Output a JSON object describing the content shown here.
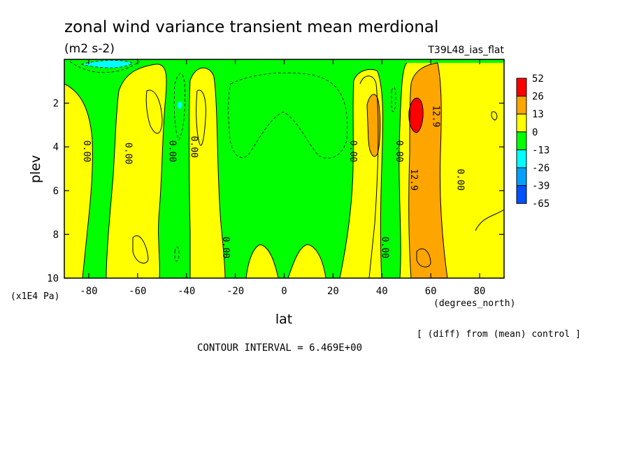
{
  "chart_data": {
    "type": "heatmap",
    "title": "zonal wind variance transient mean merdional",
    "subtitle": "(m2 s-2)",
    "run_label": "T39L48_ias_flat",
    "xlabel": "lat",
    "x_units": "(degrees_north)",
    "ylabel": "plev",
    "y_units": "(x1E4 Pa)",
    "xlim": [
      -90,
      90
    ],
    "ylim": [
      0,
      10
    ],
    "y_inverted": true,
    "xticks": [
      "-80",
      "-60",
      "-40",
      "-20",
      "0",
      "20",
      "40",
      "60",
      "80"
    ],
    "xtick_values": [
      -80,
      -60,
      -40,
      -20,
      0,
      20,
      40,
      60,
      80
    ],
    "yticks": [
      "2",
      "4",
      "6",
      "8",
      "10"
    ],
    "ytick_values": [
      2,
      4,
      6,
      8,
      10
    ],
    "contour_interval_text": "CONTOUR INTERVAL = 6.469E+00",
    "note": "[ (diff) from (mean) control ]",
    "colorbar": {
      "labels": [
        "52",
        "26",
        "13",
        "0",
        "-13",
        "-26",
        "-39",
        "-65"
      ],
      "colors": [
        "#ff0000",
        "#ffa500",
        "#ffff00",
        "#00ff00",
        "#00ffff",
        "#00a0ff",
        "#0050ff"
      ]
    },
    "field_colors": {
      "positive": "#ffff00",
      "zero_band": "#00ff00",
      "high": "#ffa500",
      "max": "#ff0000",
      "neg": "#00ffff"
    },
    "contour_labels": [
      {
        "text": "0.00",
        "lat": -82,
        "plev": 4.2
      },
      {
        "text": "0.00",
        "lat": -65,
        "plev": 4.3
      },
      {
        "text": "0.00",
        "lat": -47,
        "plev": 4.2
      },
      {
        "text": "0.00",
        "lat": -38,
        "plev": 4.0
      },
      {
        "text": "0.00",
        "lat": -25,
        "plev": 8.6
      },
      {
        "text": "0.00",
        "lat": 27,
        "plev": 4.2
      },
      {
        "text": "0.00",
        "lat": 46,
        "plev": 4.2
      },
      {
        "text": "0.00",
        "lat": 40,
        "plev": 8.6
      },
      {
        "text": "0.00",
        "lat": 71,
        "plev": 5.5
      },
      {
        "text": "12.9",
        "lat": 61,
        "plev": 2.6
      },
      {
        "text": "12.9",
        "lat": 52,
        "plev": 5.5
      }
    ]
  }
}
